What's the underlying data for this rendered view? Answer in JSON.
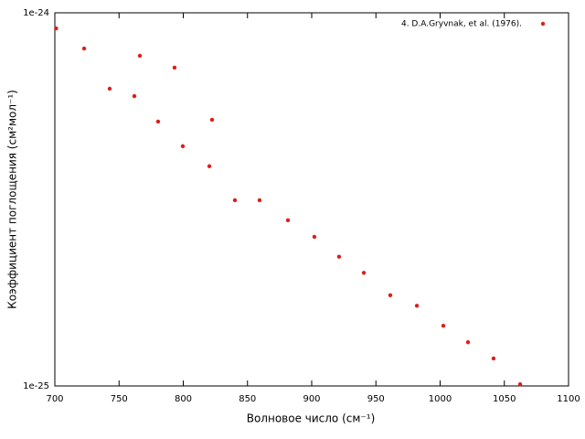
{
  "chart_data": {
    "type": "scatter",
    "xlabel": "Волновое число (см⁻¹)",
    "ylabel": "Коэффициент поглощения (см²мол⁻¹)",
    "xlim": [
      700,
      1100
    ],
    "xticks": [
      700,
      750,
      800,
      850,
      900,
      950,
      1000,
      1050,
      1100
    ],
    "ylim": [
      1e-25,
      1e-24
    ],
    "ylog": true,
    "yticks": [
      {
        "value": 1e-25,
        "label": "1e-25"
      },
      {
        "value": 1e-24,
        "label": "1e-24"
      }
    ],
    "legend": "top-right",
    "series": [
      {
        "name": "4. D.A.Gryvnak, et al. (1976).",
        "color": "#dd1f1a",
        "x": [
          701,
          722.8,
          742.7,
          761.9,
          766.2,
          780.4,
          793.2,
          799.6,
          820.3,
          822.4,
          840.2,
          859.4,
          881.5,
          902.1,
          921.3,
          940.6,
          961.2,
          981.9,
          1002.5,
          1021.7,
          1041.6,
          1062.3
        ],
        "values": [
          9.08e-25,
          8.02e-25,
          6.26e-25,
          5.98e-25,
          7.67e-25,
          5.11e-25,
          7.13e-25,
          4.39e-25,
          3.88e-25,
          5.17e-25,
          3.145e-25,
          3.145e-25,
          2.78e-25,
          2.51e-25,
          2.22e-25,
          2.01e-25,
          1.75e-25,
          1.64e-25,
          1.45e-25,
          1.31e-25,
          1.185e-25,
          1.01e-25
        ]
      }
    ]
  }
}
